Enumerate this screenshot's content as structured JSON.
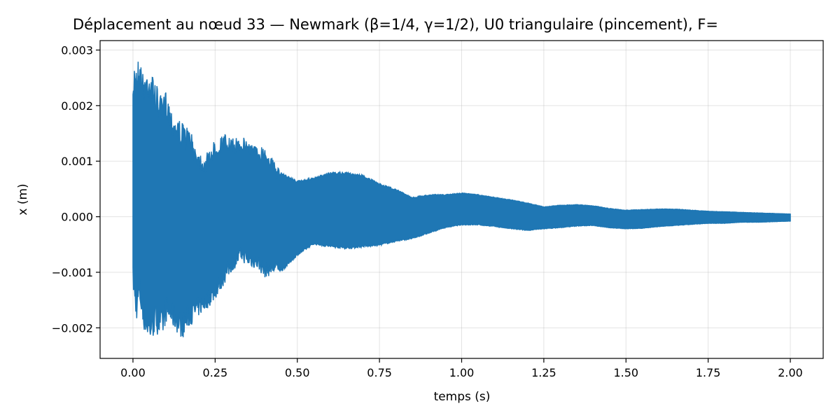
{
  "chart_data": {
    "type": "area",
    "title": "Déplacement au nœud 33 — Newmark (β=1/4, γ=1/2), U0 triangulaire (pincement), F=",
    "xlabel": "temps (s)",
    "ylabel": "x (m)",
    "xlim": [
      -0.1,
      2.1
    ],
    "ylim": [
      -0.00255,
      0.00317
    ],
    "grid": true,
    "color": "#1f77b4",
    "x_ticks": [
      0.0,
      0.25,
      0.5,
      0.75,
      1.0,
      1.25,
      1.5,
      1.75,
      2.0
    ],
    "x_tick_labels": [
      "0.00",
      "0.25",
      "0.50",
      "0.75",
      "1.00",
      "1.25",
      "1.50",
      "1.75",
      "2.00"
    ],
    "y_ticks": [
      -0.002,
      -0.001,
      0.0,
      0.001,
      0.002,
      0.003
    ],
    "y_tick_labels": [
      "−0.002",
      "−0.001",
      "0.000",
      "0.001",
      "0.002",
      "0.003"
    ],
    "series": [
      {
        "envelope_t": [
          0.0,
          0.005,
          0.01,
          0.02,
          0.03,
          0.05,
          0.07,
          0.09,
          0.1,
          0.12,
          0.15,
          0.17,
          0.2,
          0.22,
          0.25,
          0.28,
          0.3,
          0.33,
          0.35,
          0.38,
          0.4,
          0.45,
          0.5,
          0.55,
          0.6,
          0.65,
          0.7,
          0.75,
          0.8,
          0.85,
          0.9,
          0.95,
          1.0,
          1.05,
          1.1,
          1.15,
          1.2,
          1.25,
          1.3,
          1.35,
          1.4,
          1.45,
          1.5,
          1.55,
          1.6,
          1.65,
          1.7,
          1.75,
          1.8,
          1.85,
          1.9,
          1.95,
          2.0
        ],
        "upper": [
          0.0022,
          0.0029,
          0.0028,
          0.0029,
          0.0026,
          0.0027,
          0.0024,
          0.0021,
          0.0023,
          0.0019,
          0.0017,
          0.0016,
          0.0012,
          0.0011,
          0.0014,
          0.0015,
          0.0014,
          0.00145,
          0.0014,
          0.00125,
          0.0013,
          0.0008,
          0.00065,
          0.0007,
          0.0008,
          0.0008,
          0.00075,
          0.0006,
          0.0005,
          0.00035,
          0.0004,
          0.0004,
          0.00043,
          0.0004,
          0.00035,
          0.00031,
          0.00025,
          0.00018,
          0.00021,
          0.00022,
          0.0002,
          0.00015,
          0.00012,
          0.00013,
          0.00014,
          0.00014,
          0.00012,
          0.0001,
          9e-05,
          8e-05,
          7e-05,
          6e-05,
          5e-05
        ],
        "lower": [
          -0.0013,
          -0.0017,
          -0.0019,
          -0.0016,
          -0.002,
          -0.0023,
          -0.0021,
          -0.0022,
          -0.0019,
          -0.002,
          -0.0022,
          -0.002,
          -0.0018,
          -0.0017,
          -0.0015,
          -0.0012,
          -0.001,
          -0.0008,
          -0.0009,
          -0.00095,
          -0.0011,
          -0.001,
          -0.0007,
          -0.0005,
          -0.00055,
          -0.00058,
          -0.00055,
          -0.00052,
          -0.00045,
          -0.0004,
          -0.0003,
          -0.0002,
          -0.00015,
          -0.00015,
          -0.00018,
          -0.00022,
          -0.00025,
          -0.00022,
          -0.0002,
          -0.00017,
          -0.00016,
          -0.0002,
          -0.00022,
          -0.00021,
          -0.00018,
          -0.00016,
          -0.00014,
          -0.00012,
          -0.00012,
          -0.0001,
          -0.0001,
          -9e-05,
          -8e-05
        ]
      }
    ]
  }
}
